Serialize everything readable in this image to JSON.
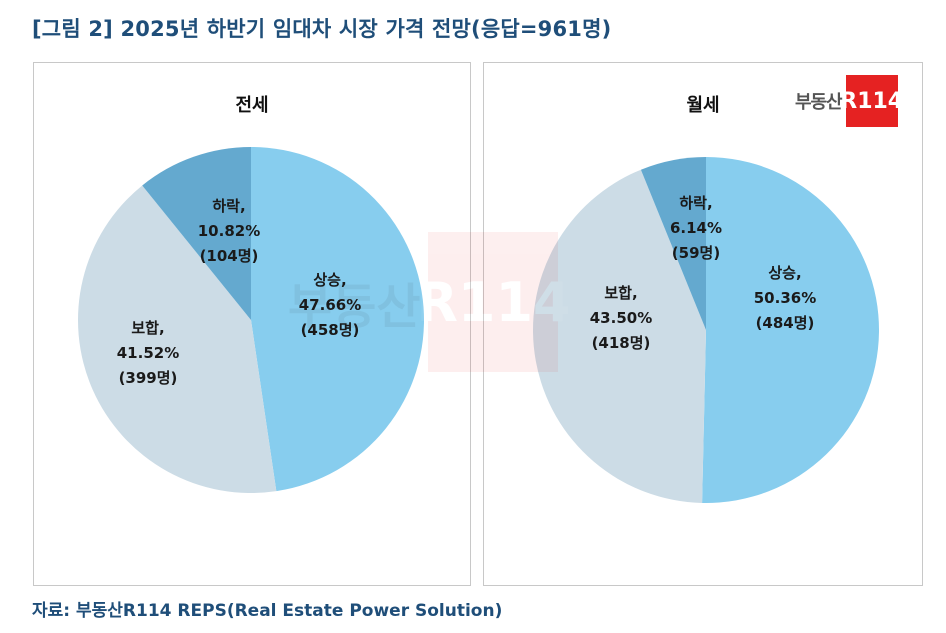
{
  "title": "[그림 2] 2025년 하반기 임대차 시장 가격 전망(응답=961명)",
  "source": "자료: 부동산R114 REPS(Real Estate Power Solution)",
  "logo": {
    "text": "부동산",
    "mark": "R114"
  },
  "colors": {
    "rise": "#87cdee",
    "flat": "#ccdce6",
    "fall": "#64a9cf",
    "title": "#1f4e79",
    "logo_red": "#e52222"
  },
  "chart_data": [
    {
      "type": "pie",
      "title": "전세",
      "slices": [
        {
          "name": "상승,",
          "value": 47.66,
          "pct_label": "47.66%",
          "count_label": "(458명)"
        },
        {
          "name": "보합,",
          "value": 41.52,
          "pct_label": "41.52%",
          "count_label": "(399명)"
        },
        {
          "name": "하락,",
          "value": 10.82,
          "pct_label": "10.82%",
          "count_label": "(104명)"
        }
      ]
    },
    {
      "type": "pie",
      "title": "월세",
      "slices": [
        {
          "name": "상승,",
          "value": 50.36,
          "pct_label": "50.36%",
          "count_label": "(484명)"
        },
        {
          "name": "보합,",
          "value": 43.5,
          "pct_label": "43.50%",
          "count_label": "(418명)"
        },
        {
          "name": "하락,",
          "value": 6.14,
          "pct_label": "6.14%",
          "count_label": "(59명)"
        }
      ]
    }
  ]
}
